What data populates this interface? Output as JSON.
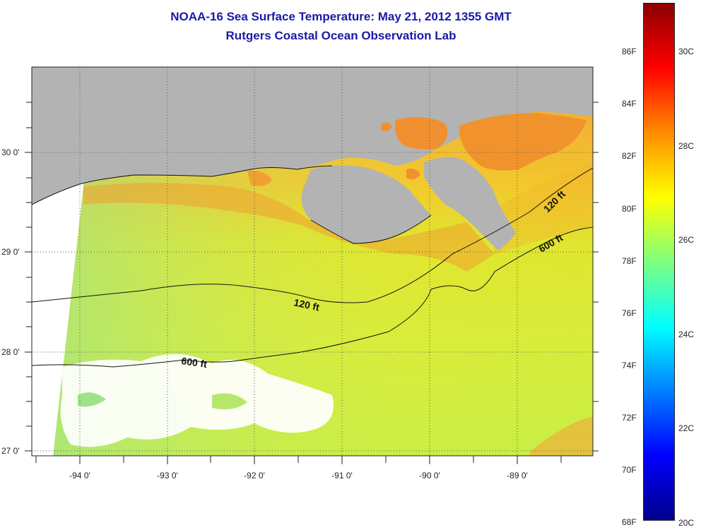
{
  "title": "NOAA-16 Sea Surface Temperature:  May 21, 2012 1355 GMT",
  "subtitle": "Rutgers Coastal Ocean Observation Lab",
  "map": {
    "lat_labels": [
      "30 0'",
      "29 0'",
      "28 0'",
      "27 0'"
    ],
    "lon_labels": [
      "-94 0'",
      "-93 0'",
      "-92 0'",
      "-91 0'",
      "-90 0'",
      "-89 0'"
    ],
    "contours": [
      {
        "label": "120 ft"
      },
      {
        "label": "120 ft"
      },
      {
        "label": "600 ft"
      },
      {
        "label": "600 ft"
      }
    ]
  },
  "colorbar": {
    "fahrenheit": [
      "86F",
      "84F",
      "82F",
      "80F",
      "78F",
      "76F",
      "74F",
      "72F",
      "70F",
      "68F"
    ],
    "celsius": [
      "30C",
      "28C",
      "26C",
      "24C",
      "22C",
      "20C"
    ],
    "colors": [
      "#8b0000",
      "#ff0000",
      "#ff8c00",
      "#ffff00",
      "#7fff7f",
      "#00ffff",
      "#0080ff",
      "#0000ff",
      "#00008b"
    ]
  }
}
